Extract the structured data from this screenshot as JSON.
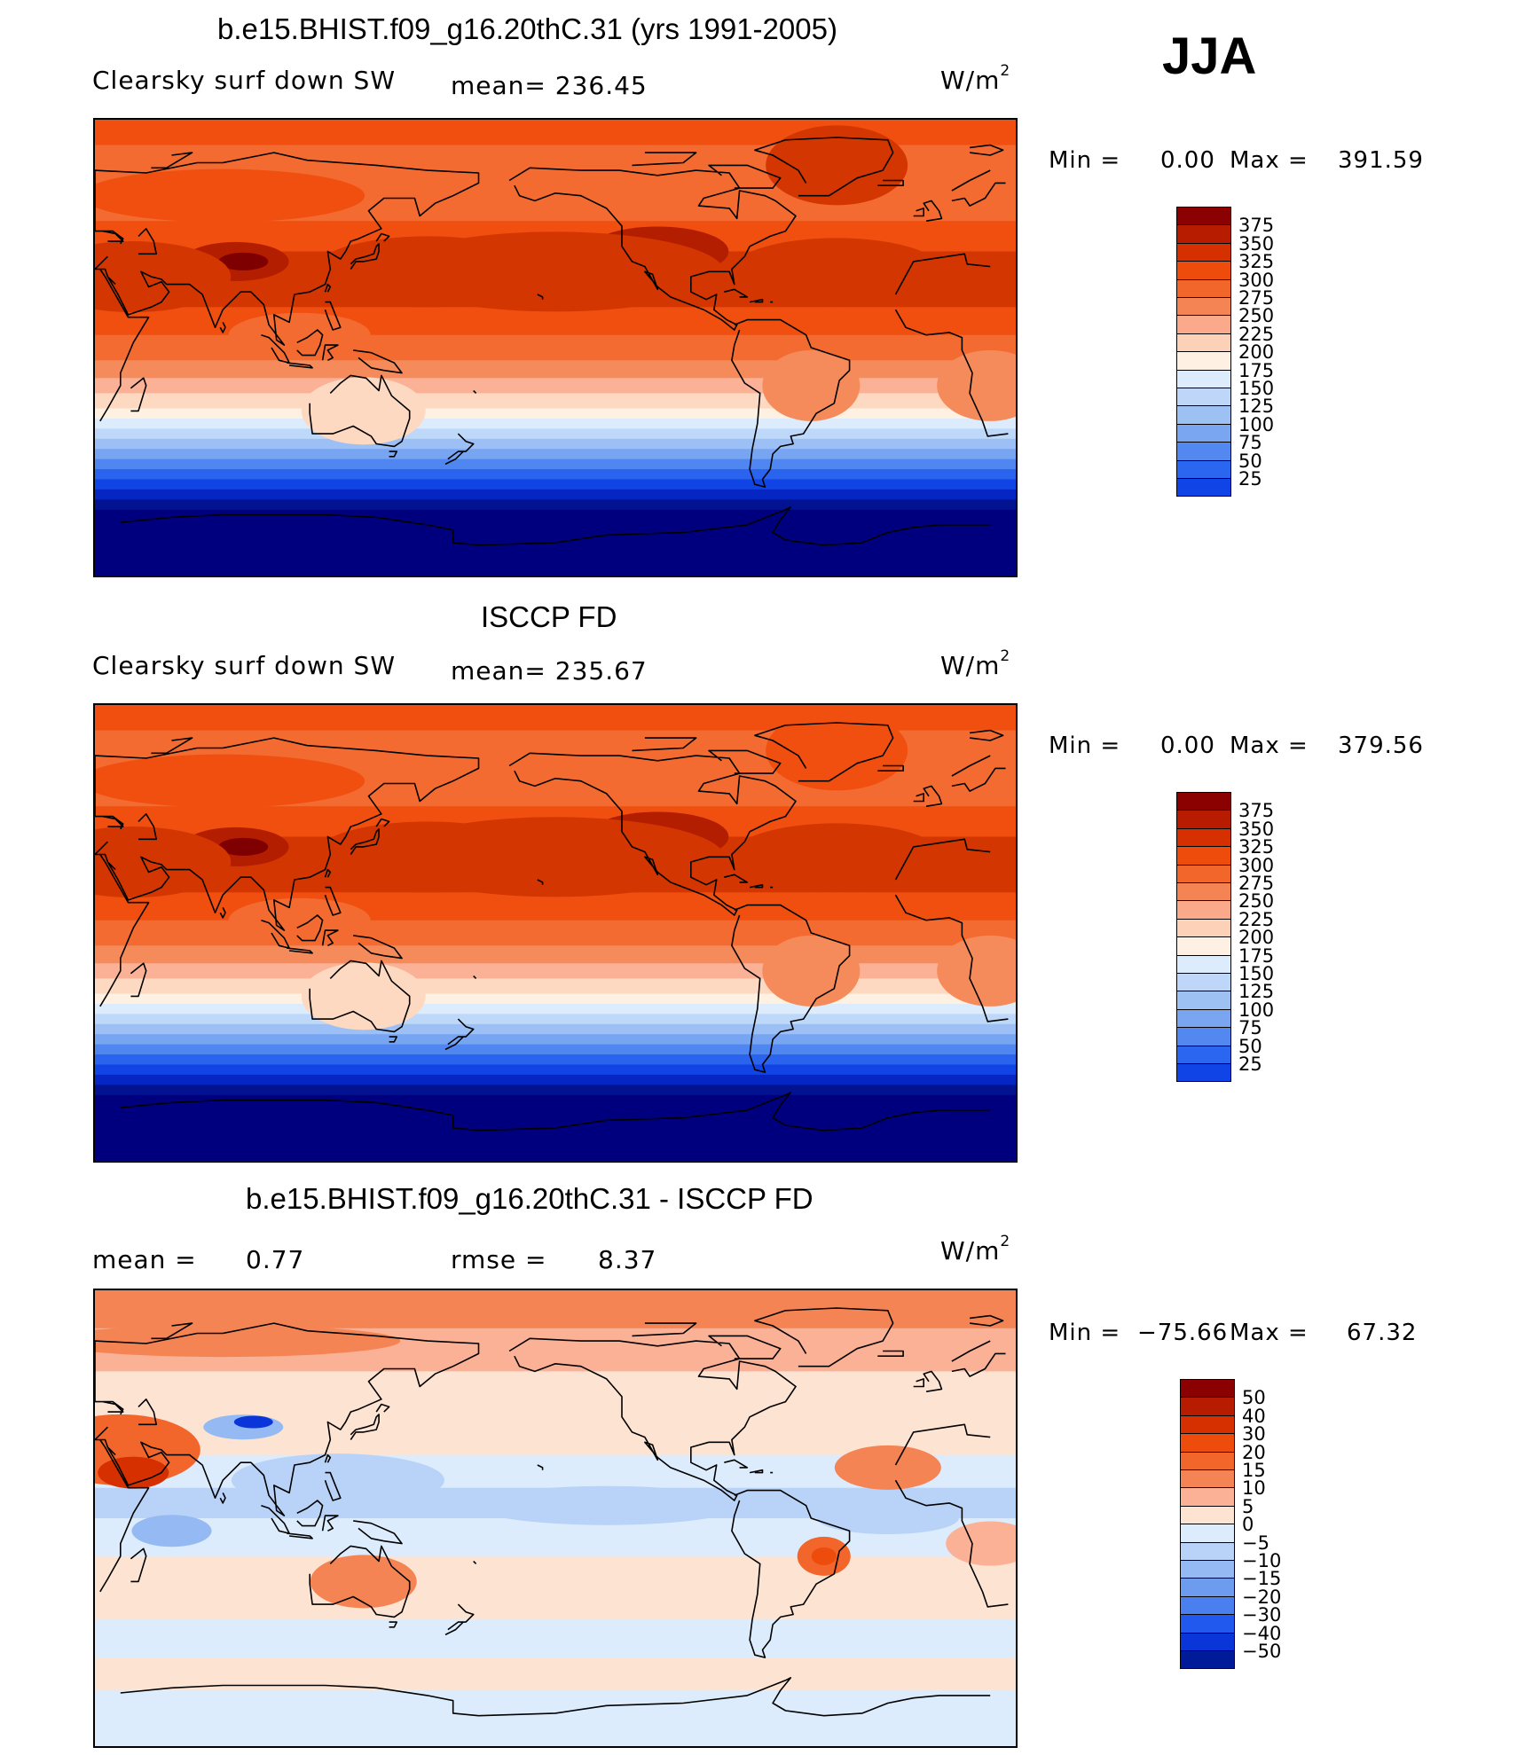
{
  "season": "JJA",
  "units_base": "W/m",
  "units_exp": "2",
  "panels": [
    {
      "title": "b.e15.BHIST.f09_g16.20thC.31 (yrs 1991-2005)",
      "left_label": "Clearsky surf down SW",
      "center_label": "mean= 236.45",
      "min_label": "Min =",
      "min_value": "0.00",
      "max_label": "Max =",
      "max_value": "391.59",
      "levels": [
        "375",
        "350",
        "325",
        "300",
        "275",
        "250",
        "225",
        "200",
        "175",
        "150",
        "125",
        "100",
        "75",
        "50",
        "25"
      ]
    },
    {
      "title": "ISCCP FD",
      "left_label": "Clearsky surf down SW",
      "center_label": "mean= 235.67",
      "min_label": "Min =",
      "min_value": "0.00",
      "max_label": "Max =",
      "max_value": "379.56",
      "levels": [
        "375",
        "350",
        "325",
        "300",
        "275",
        "250",
        "225",
        "200",
        "175",
        "150",
        "125",
        "100",
        "75",
        "50",
        "25"
      ]
    },
    {
      "title": "b.e15.BHIST.f09_g16.20thC.31 - ISCCP FD",
      "left_label": "mean =",
      "left_value": "0.77",
      "center_label": "rmse =",
      "center_value": "8.37",
      "min_label": "Min =",
      "min_value": "−75.66",
      "max_label": "Max =",
      "max_value": "67.32",
      "levels": [
        "50",
        "40",
        "30",
        "20",
        "15",
        "10",
        "5",
        "0",
        "−5",
        "−10",
        "−15",
        "−20",
        "−30",
        "−40",
        "−50"
      ]
    }
  ],
  "colors": {
    "abs_scale": [
      "#7f0000",
      "#b31d00",
      "#d33600",
      "#f04f0f",
      "#f36b30",
      "#f58b5a",
      "#fab196",
      "#fdd9c2",
      "#fff1e2",
      "#dcecfc",
      "#bdd8f9",
      "#9cc0f5",
      "#78a5f2",
      "#4f86f0",
      "#2963ee",
      "#1144e5",
      "#0526c2",
      "#021291",
      "#00007f"
    ],
    "abs_cbar": [
      "#8b0000",
      "#b81c00",
      "#d73000",
      "#ee4c0c",
      "#f2652b",
      "#f58454",
      "#faa98a",
      "#fdd1b8",
      "#fff0e4",
      "#dcecfc",
      "#bed7f8",
      "#9ec1f4",
      "#7aa6f1",
      "#5288ef",
      "#2a66ef",
      "#1044e6",
      "#0427c5",
      "#001b99",
      "#00007f"
    ],
    "diff_cbar": [
      "#8b0000",
      "#b81c00",
      "#d73000",
      "#ee4c0c",
      "#f2652b",
      "#f58454",
      "#fab196",
      "#fde3d2",
      "#dcecfc",
      "#b8d3f7",
      "#94b9f3",
      "#6d9cef",
      "#4a7ff0",
      "#2158ee",
      "#0a35d8",
      "#001b99",
      "#00007f"
    ],
    "coast": "#000000"
  }
}
